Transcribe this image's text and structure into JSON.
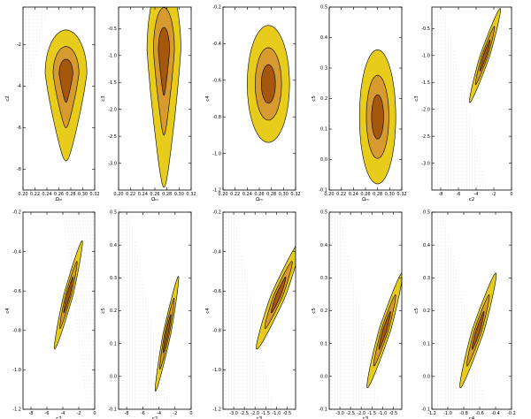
{
  "palette": {
    "outer": "#e7cc1b",
    "middle": "#d69a2e",
    "inner": "#a4570d",
    "hatch": "#c8c8c8"
  },
  "chart_data": [
    {
      "type": "contour",
      "xlabel": "Ωₘ",
      "ylabel": "c2",
      "xlim": [
        0.2,
        0.32
      ],
      "ylim": [
        -9,
        -0.2
      ],
      "xticks": [
        "0.20",
        "0.22",
        "0.24",
        "0.26",
        "0.28",
        "0.30",
        "0.32"
      ],
      "yticks": [
        "-8",
        "-6",
        "-4",
        "-2"
      ],
      "peak": [
        0.272,
        -3.4
      ],
      "spread": [
        0.035,
        2.8
      ],
      "tilt": 0,
      "shape": "teardrop",
      "hatch": "top-left"
    },
    {
      "type": "contour",
      "xlabel": "Ωₘ",
      "ylabel": "c3",
      "xlim": [
        0.2,
        0.32
      ],
      "ylim": [
        -3.5,
        -0.1
      ],
      "xticks": [
        "0.20",
        "0.22",
        "0.24",
        "0.26",
        "0.28",
        "0.30",
        "0.32"
      ],
      "yticks": [
        "-3.0",
        "-2.5",
        "-2.0",
        "-1.5",
        "-1.0",
        "-0.5"
      ],
      "peak": [
        0.275,
        -0.9
      ],
      "spread": [
        0.028,
        1.7
      ],
      "tilt": 0,
      "shape": "teardrop",
      "hatch": "none"
    },
    {
      "type": "contour",
      "xlabel": "Ωₘ",
      "ylabel": "c4",
      "xlim": [
        0.2,
        0.32
      ],
      "ylim": [
        -1.2,
        -0.2
      ],
      "xticks": [
        "0.20",
        "0.22",
        "0.24",
        "0.26",
        "0.28",
        "0.30",
        "0.32"
      ],
      "yticks": [
        "-1.2",
        "-1.0",
        "-0.8",
        "-0.6",
        "-0.4",
        "-0.2"
      ],
      "peak": [
        0.275,
        -0.62
      ],
      "spread": [
        0.035,
        0.32
      ],
      "tilt": 0,
      "shape": "oval",
      "hatch": "none"
    },
    {
      "type": "contour",
      "xlabel": "Ωₘ",
      "ylabel": "c5",
      "xlim": [
        0.2,
        0.32
      ],
      "ylim": [
        -0.1,
        0.5
      ],
      "xticks": [
        "0.20",
        "0.22",
        "0.24",
        "0.26",
        "0.28",
        "0.30",
        "0.32"
      ],
      "yticks": [
        "-0.1",
        "0.0",
        "0.1",
        "0.2",
        "0.3",
        "0.4",
        "0.5"
      ],
      "peak": [
        0.28,
        0.14
      ],
      "spread": [
        0.03,
        0.22
      ],
      "tilt": 0,
      "shape": "oval",
      "hatch": "none"
    },
    {
      "type": "contour",
      "xlabel": "c2",
      "ylabel": "c3",
      "xlim": [
        -9,
        0
      ],
      "ylim": [
        -3.5,
        -0.1
      ],
      "xticks": [
        "-8",
        "-6",
        "-4",
        "-2",
        "0"
      ],
      "yticks": [
        "-3.0",
        "-2.5",
        "-2.0",
        "-1.5",
        "-1.0",
        "-0.5"
      ],
      "peak": [
        -3.0,
        -1.0
      ],
      "spread": [
        1.6,
        0.7
      ],
      "tilt": 0.95,
      "shape": "needle",
      "hatch": "left"
    },
    {
      "type": "contour",
      "xlabel": "c2",
      "ylabel": "c4",
      "xlim": [
        -9,
        0
      ],
      "ylim": [
        -1.2,
        -0.2
      ],
      "xticks": [
        "-8",
        "-6",
        "-4",
        "-2",
        "0"
      ],
      "yticks": [
        "-1.2",
        "-1.0",
        "-0.8",
        "-0.6",
        "-0.4",
        "-0.2"
      ],
      "peak": [
        -3.3,
        -0.62
      ],
      "spread": [
        1.7,
        0.22
      ],
      "tilt": 0.9,
      "shape": "needle",
      "hatch": "right"
    },
    {
      "type": "contour",
      "xlabel": "c2",
      "ylabel": "c5",
      "xlim": [
        -9,
        0
      ],
      "ylim": [
        -0.1,
        0.5
      ],
      "xticks": [
        "-8",
        "-6",
        "-4",
        "-2",
        "0"
      ],
      "yticks": [
        "-0.1",
        "0.0",
        "0.1",
        "0.2",
        "0.3",
        "0.4",
        "0.5"
      ],
      "peak": [
        -3.0,
        0.13
      ],
      "spread": [
        1.4,
        0.14
      ],
      "tilt": 0.9,
      "shape": "needle",
      "hatch": "left"
    },
    {
      "type": "contour",
      "xlabel": "c3",
      "ylabel": "c4",
      "xlim": [
        -3.5,
        -0.1
      ],
      "ylim": [
        -1.2,
        -0.2
      ],
      "xticks": [
        "-3.0",
        "-2.5",
        "-2.0",
        "-1.5",
        "-1.0",
        "-0.5"
      ],
      "yticks": [
        "-1.2",
        "-1.0",
        "-0.8",
        "-0.6",
        "-0.4",
        "-0.2"
      ],
      "peak": [
        -0.9,
        -0.62
      ],
      "spread": [
        1.0,
        0.22
      ],
      "tilt": 0.9,
      "shape": "needle",
      "hatch": "left"
    },
    {
      "type": "contour",
      "xlabel": "c3",
      "ylabel": "c5",
      "xlim": [
        -3.5,
        -0.1
      ],
      "ylim": [
        -0.1,
        0.5
      ],
      "xticks": [
        "-3.0",
        "-2.5",
        "-2.0",
        "-1.5",
        "-1.0",
        "-0.5"
      ],
      "yticks": [
        "-0.1",
        "0.0",
        "0.1",
        "0.2",
        "0.3",
        "0.4",
        "0.5"
      ],
      "peak": [
        -0.9,
        0.14
      ],
      "spread": [
        0.8,
        0.14
      ],
      "tilt": 0.9,
      "shape": "needle",
      "hatch": "left"
    },
    {
      "type": "contour",
      "xlabel": "c4",
      "ylabel": "c5",
      "xlim": [
        -1.2,
        -0.2
      ],
      "ylim": [
        -0.1,
        0.5
      ],
      "xticks": [
        "-1.2",
        "-1.0",
        "-0.8",
        "-0.6",
        "-0.4",
        "-0.2"
      ],
      "yticks": [
        "-0.1",
        "0.0",
        "0.1",
        "0.2",
        "0.3",
        "0.4",
        "0.5"
      ],
      "peak": [
        -0.62,
        0.14
      ],
      "spread": [
        0.22,
        0.14
      ],
      "tilt": 0.9,
      "shape": "needle",
      "hatch": "left"
    }
  ]
}
